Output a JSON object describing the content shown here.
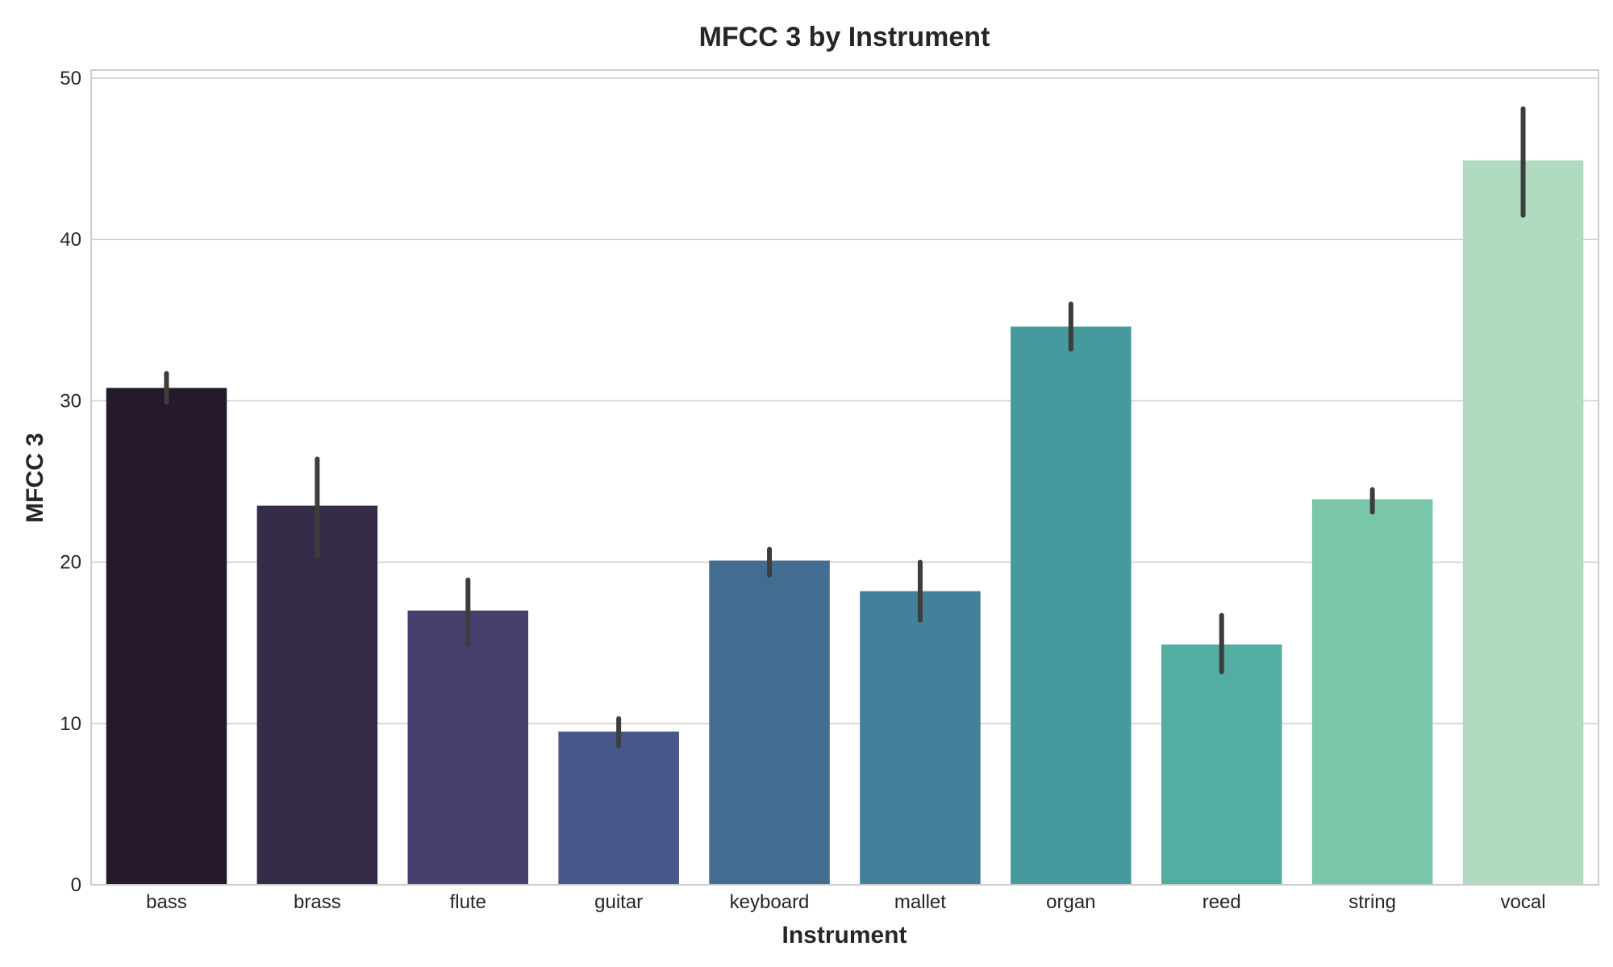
{
  "chart_data": {
    "type": "bar",
    "title": "MFCC 3 by Instrument",
    "xlabel": "Instrument",
    "ylabel": "MFCC 3",
    "ylim": [
      0,
      50.5
    ],
    "yticks": [
      0,
      10,
      20,
      30,
      40,
      50
    ],
    "grid": "y",
    "categories": [
      "bass",
      "brass",
      "flute",
      "guitar",
      "keyboard",
      "mallet",
      "organ",
      "reed",
      "string",
      "vocal"
    ],
    "values": [
      30.8,
      23.5,
      17.0,
      9.5,
      20.1,
      18.2,
      34.6,
      14.9,
      23.9,
      44.9
    ],
    "error_low": [
      29.9,
      20.4,
      14.9,
      8.6,
      19.2,
      16.4,
      33.2,
      13.2,
      23.1,
      41.5
    ],
    "error_high": [
      31.7,
      26.4,
      18.9,
      10.3,
      20.8,
      20.0,
      36.0,
      16.7,
      24.5,
      48.1
    ],
    "colors": [
      "#241a2b",
      "#362c47",
      "#463f6e",
      "#48578a",
      "#436d90",
      "#43819a",
      "#46999d",
      "#53ada1",
      "#79c6a9",
      "#b1dbc1"
    ]
  }
}
